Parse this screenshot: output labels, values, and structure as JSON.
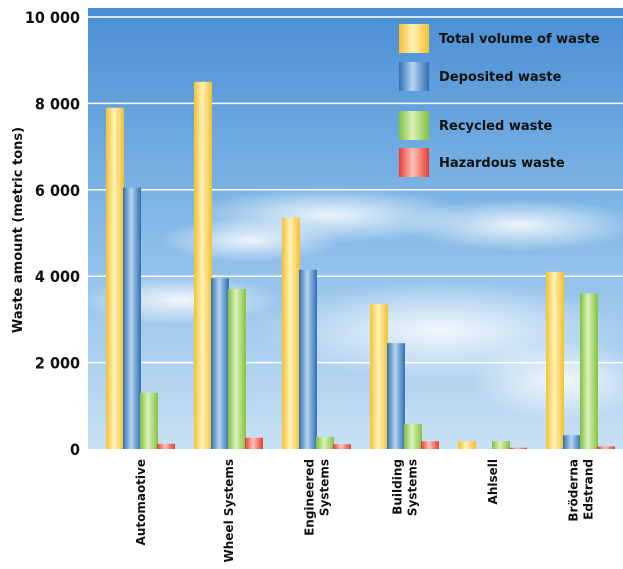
{
  "chart_data": {
    "type": "bar",
    "ylabel": "Waste amount (metric tons)",
    "ylim": [
      0,
      10000
    ],
    "y_ticks": [
      {
        "value": 0,
        "label": "0"
      },
      {
        "value": 2000,
        "label": "2 000"
      },
      {
        "value": 4000,
        "label": "4 000"
      },
      {
        "value": 6000,
        "label": "6 000"
      },
      {
        "value": 8000,
        "label": "8 000"
      },
      {
        "value": 10000,
        "label": "10 000"
      }
    ],
    "categories": [
      {
        "lines": [
          "Automaotive"
        ]
      },
      {
        "lines": [
          "Wheel Systems"
        ]
      },
      {
        "lines": [
          "Engineered",
          "Systems"
        ]
      },
      {
        "lines": [
          "Building",
          "Systems"
        ]
      },
      {
        "lines": [
          "Ahlsell"
        ]
      },
      {
        "lines": [
          "Bröderna",
          "Edstrand"
        ]
      }
    ],
    "series": [
      {
        "name": "Total volume of waste",
        "color": "#f5c02e",
        "light": "#fff1b8",
        "values": [
          7900,
          8500,
          5350,
          3350,
          180,
          4100
        ]
      },
      {
        "name": "Deposited waste",
        "color": "#2f6fb3",
        "light": "#b7d4f0",
        "values": [
          6050,
          3950,
          4150,
          2450,
          0,
          320
        ]
      },
      {
        "name": "Recycled waste",
        "color": "#7fc241",
        "light": "#dcf0b8",
        "values": [
          1300,
          3700,
          280,
          580,
          180,
          3600
        ]
      },
      {
        "name": "Hazardous waste",
        "color": "#e53c2e",
        "light": "#ffc4b8",
        "values": [
          120,
          260,
          110,
          180,
          30,
          60
        ]
      }
    ],
    "grid": true,
    "legend_position": "top-right"
  }
}
